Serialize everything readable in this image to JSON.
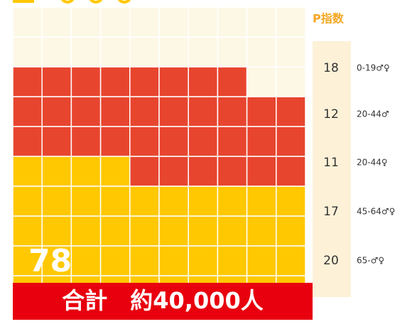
{
  "chart_data": {
    "type": "waffle",
    "title": "P指数",
    "total_label": "78",
    "footer": "合計　約40,000人",
    "total_cells": 100,
    "columns": 10,
    "empty_color": "#fdf8e6",
    "segments": [
      {
        "color": "#ffc800",
        "cells": 44
      },
      {
        "color": "#e8452f",
        "cells": 34
      }
    ],
    "legend": [
      {
        "value": 18,
        "label": "0-19♂♀"
      },
      {
        "value": 12,
        "label": "20-44♂"
      },
      {
        "value": 11,
        "label": "20-44♀"
      },
      {
        "value": 17,
        "label": "45-64♂♀"
      },
      {
        "value": 20,
        "label": "65-♂♀"
      }
    ]
  }
}
